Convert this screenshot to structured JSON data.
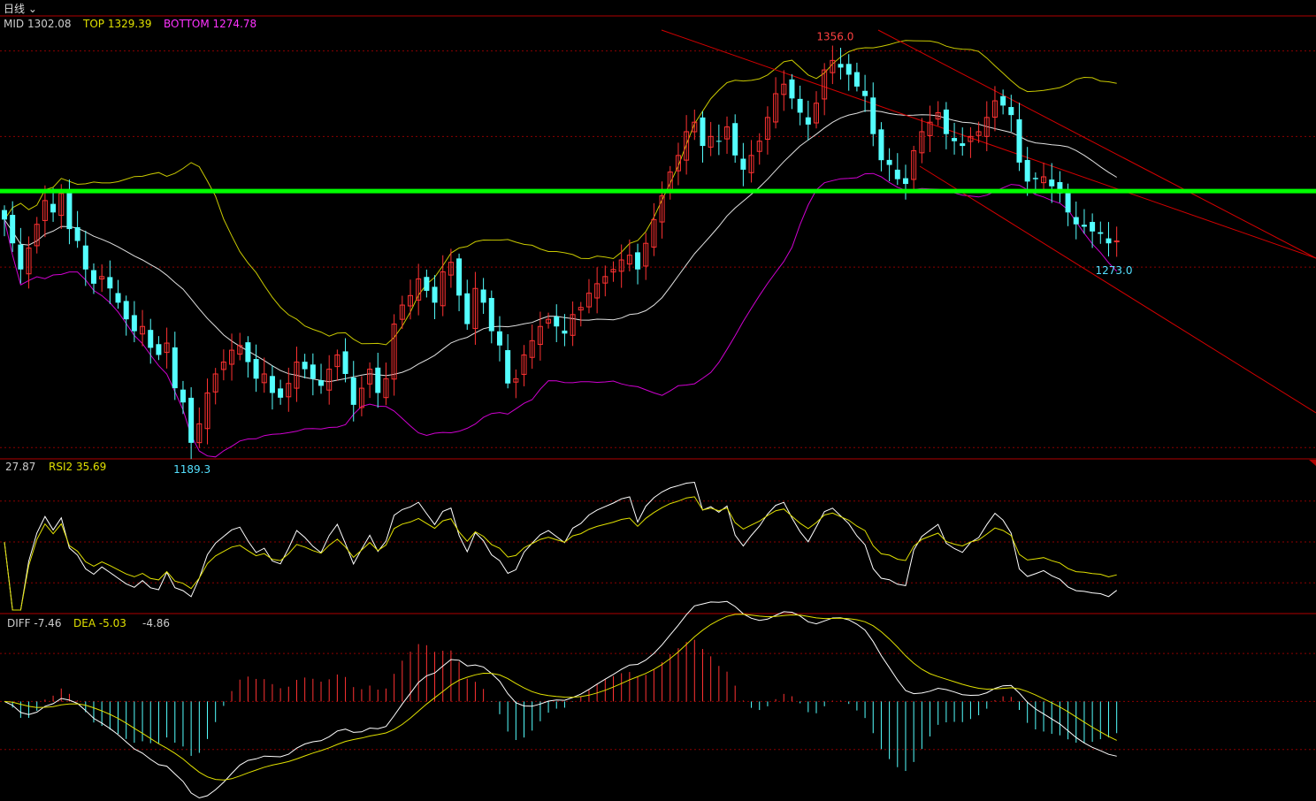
{
  "header": {
    "period_label": "日线"
  },
  "main_panel": {
    "legend": {
      "mid": "MID 1302.08",
      "top": "TOP 1329.39",
      "bottom": "BOTTOM 1274.78"
    },
    "annotations": {
      "high": "1356.0",
      "low": "1189.3",
      "last_low": "1273.0"
    },
    "ylim": [
      1185,
      1370
    ],
    "support_level": 1297
  },
  "rsi_panel": {
    "legend": {
      "rsi1": "27.87",
      "rsi2": "RSI2 35.69"
    },
    "ylim": [
      0,
      100
    ],
    "gridlines": [
      80,
      50,
      20
    ]
  },
  "macd_panel": {
    "legend": {
      "diff": "DIFF -7.46",
      "dea": "DEA -5.03",
      "macd": "-4.86"
    },
    "ylim": [
      -20,
      15
    ]
  },
  "colors": {
    "background": "#000000",
    "up_candle": "#ff3232",
    "down_candle": "#54ffff",
    "mid_line": "#ffffff",
    "upper_band": "#ffff00",
    "lower_band": "#ff00ff",
    "support_line": "#00ff00",
    "channel": "#ff0000",
    "grid": "#8b0000",
    "label_text": "#cccccc"
  },
  "chart_data": {
    "type": "candlestick",
    "closes": [
      1285,
      1275,
      1264,
      1273,
      1283,
      1293,
      1288,
      1296,
      1281,
      1276,
      1264,
      1258,
      1261,
      1256,
      1250,
      1243,
      1238,
      1240,
      1231,
      1228,
      1233,
      1214,
      1208,
      1191,
      1199,
      1212,
      1220,
      1225,
      1230,
      1232,
      1225,
      1218,
      1220,
      1212,
      1210,
      1216,
      1225,
      1222,
      1218,
      1215,
      1222,
      1228,
      1220,
      1207,
      1214,
      1222,
      1212,
      1218,
      1241,
      1249,
      1253,
      1260,
      1255,
      1250,
      1263,
      1267,
      1253,
      1241,
      1256,
      1250,
      1238,
      1232,
      1216,
      1218,
      1228,
      1234,
      1240,
      1243,
      1240,
      1237,
      1245,
      1248,
      1254,
      1258,
      1261,
      1264,
      1268,
      1270,
      1264,
      1275,
      1285,
      1295,
      1305,
      1312,
      1322,
      1326,
      1316,
      1320,
      1318,
      1324,
      1312,
      1306,
      1312,
      1318,
      1328,
      1338,
      1342,
      1336,
      1330,
      1325,
      1334,
      1348,
      1352,
      1349,
      1346,
      1341,
      1337,
      1321,
      1310,
      1308,
      1302,
      1300,
      1314,
      1322,
      1326,
      1330,
      1321,
      1318,
      1316,
      1320,
      1322,
      1328,
      1335,
      1333,
      1329,
      1309,
      1301,
      1302,
      1303,
      1299,
      1296,
      1288,
      1283,
      1282,
      1280,
      1279,
      1275,
      1276
    ]
  }
}
